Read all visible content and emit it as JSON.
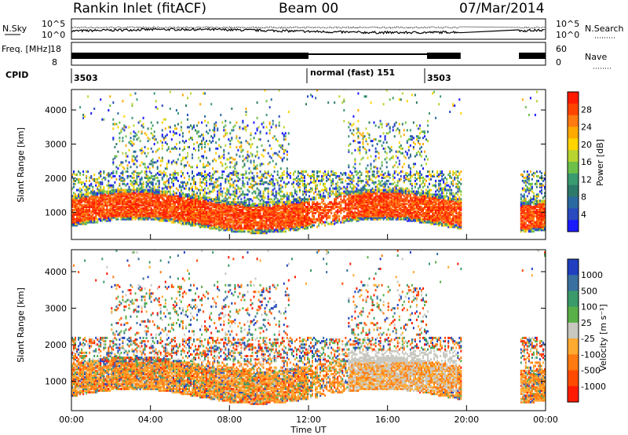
{
  "header": {
    "title": "Rankin Inlet (fitACF)",
    "beam": "Beam 00",
    "date": "07/Mar/2014"
  },
  "chart_data": [
    {
      "type": "line",
      "name": "noise-panel",
      "ylabel_left": "N.Sky",
      "ylabel_right": "N.Search",
      "yticks_left": [
        "10^5",
        "10^0"
      ],
      "yticks_right": [
        "10^5",
        "10^0"
      ],
      "legend_right": "N.Search ......."
    },
    {
      "type": "line",
      "name": "freq-nave-panel",
      "ylabel_left": "Freq. [MHz]",
      "ylabel_right": "Nave",
      "yticks_left": [
        18,
        8
      ],
      "yticks_right": [
        60,
        0
      ],
      "legend_right": "Nave ...."
    },
    {
      "type": "table",
      "name": "cpid-strip",
      "label": "CPID",
      "segments": [
        {
          "start_hour": 0,
          "text": "3503"
        },
        {
          "start_hour": 12,
          "text": "normal (fast) 151"
        },
        {
          "start_hour": 18,
          "text": "3503"
        }
      ]
    },
    {
      "type": "heatmap",
      "name": "power",
      "ylabel": "Slant Range [km]",
      "yticks": [
        1000,
        2000,
        3000,
        4000
      ],
      "ylim": [
        200,
        4600
      ],
      "colorbar_label": "Power [dB]",
      "colorbar_ticks": [
        "28",
        "24",
        "20",
        "16",
        "12",
        "8",
        "4"
      ],
      "colors_top_to_bottom": [
        "#ff1a00",
        "#ff4400",
        "#ff7a10",
        "#ffaa00",
        "#ffd400",
        "#b8d430",
        "#6cc04a",
        "#3a9a70",
        "#2e7a6a",
        "#2a6aa0",
        "#2a4ac0",
        "#1a1aff"
      ],
      "data_gaps_hours": [
        [
          19.7,
          22.65
        ]
      ]
    },
    {
      "type": "heatmap",
      "name": "velocity",
      "ylabel": "Slant Range [km]",
      "yticks": [
        1000,
        2000,
        3000,
        4000
      ],
      "ylim": [
        200,
        4600
      ],
      "colorbar_label": "Velocity [m s⁻¹]",
      "colorbar_ticks": [
        "1000",
        "500",
        "100",
        "25",
        "-25",
        "-100",
        "-500",
        "-1000"
      ],
      "colors_top_to_bottom": [
        "#2040c0",
        "#3a70a0",
        "#3a9a6a",
        "#5ab048",
        "#c8c8c0",
        "#ffaa30",
        "#ff7a10",
        "#ff4a00",
        "#ff1a00"
      ],
      "data_gaps_hours": [
        [
          19.7,
          22.65
        ]
      ]
    }
  ],
  "xaxis": {
    "label": "Time UT",
    "ticks": [
      "00:00",
      "04:00",
      "08:00",
      "12:00",
      "16:00",
      "20:00",
      "00:00"
    ],
    "range_hours": [
      0,
      24
    ]
  }
}
